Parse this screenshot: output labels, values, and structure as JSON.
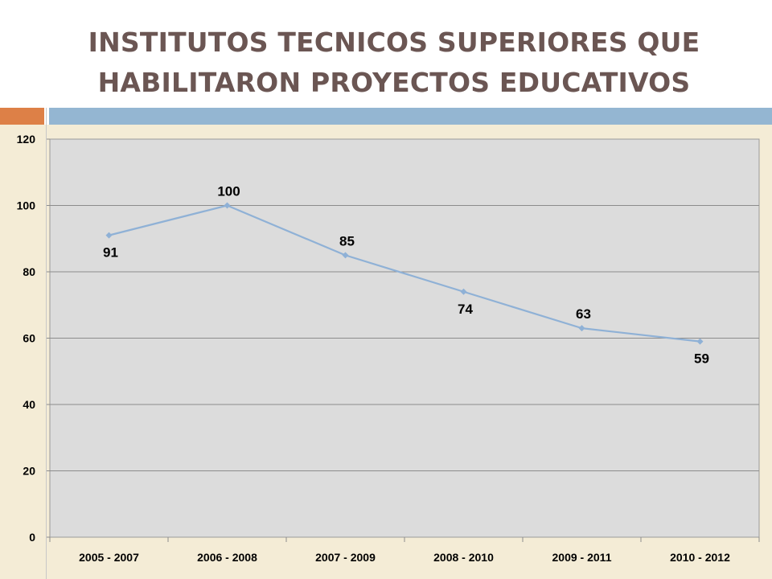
{
  "title_lines": [
    "INSTITUTOS  TECNICOS  SUPERIORES  QUE",
    "HABILITARON  PROYECTOS EDUCATIVOS"
  ],
  "colors": {
    "title": "#6b5653",
    "accent_orange": "#dd8047",
    "accent_blue": "#94b6d2",
    "panel_bg": "#f4ecd6",
    "plot_bg": "#dcdcdc",
    "line": "#8fb1d6"
  },
  "chart_data": {
    "type": "line",
    "categories": [
      "2005 - 2007",
      "2006 - 2008",
      "2007 - 2009",
      "2008 - 2010",
      "2009 - 2011",
      "2010 - 2012"
    ],
    "values": [
      91,
      100,
      85,
      74,
      63,
      59
    ],
    "data_labels": [
      "91",
      "100",
      "85",
      "74",
      "63",
      "59"
    ],
    "label_positions": [
      "below",
      "above",
      "above",
      "below",
      "above",
      "below"
    ],
    "ylim": [
      0,
      120
    ],
    "yticks": [
      0,
      20,
      40,
      60,
      80,
      100,
      120
    ],
    "grid": true,
    "legend": "none",
    "title": "",
    "xlabel": "",
    "ylabel": ""
  }
}
